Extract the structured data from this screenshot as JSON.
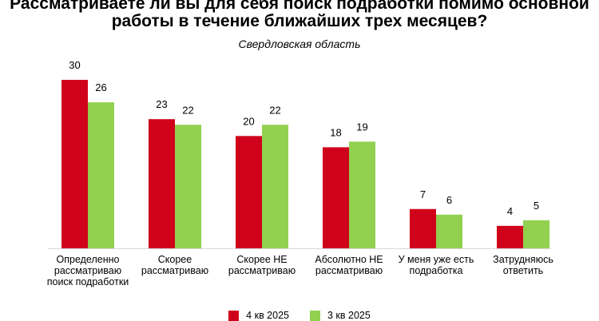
{
  "chart_data": {
    "type": "bar",
    "title": "Рассматриваете ли вы для себя поиск подработки помимо основной работы в течение ближайших трех месяцев?",
    "subtitle": "Свердловская область",
    "categories": [
      "Определенно рассматриваю поиск подработки",
      "Скорее рассматриваю",
      "Скорее НЕ рассматриваю",
      "Абсолютно НЕ рассматриваю",
      "У меня уже есть подработка",
      "Затрудняюсь ответить"
    ],
    "series": [
      {
        "name": "4 кв 2025",
        "color": "#d0021b",
        "values": [
          30,
          23,
          20,
          18,
          7,
          4
        ]
      },
      {
        "name": "3 кв 2025",
        "color": "#92d050",
        "values": [
          26,
          22,
          22,
          19,
          6,
          5
        ]
      }
    ],
    "ylim": [
      0,
      30
    ],
    "grid": false,
    "data_labels": true,
    "legend_position": "bottom"
  }
}
